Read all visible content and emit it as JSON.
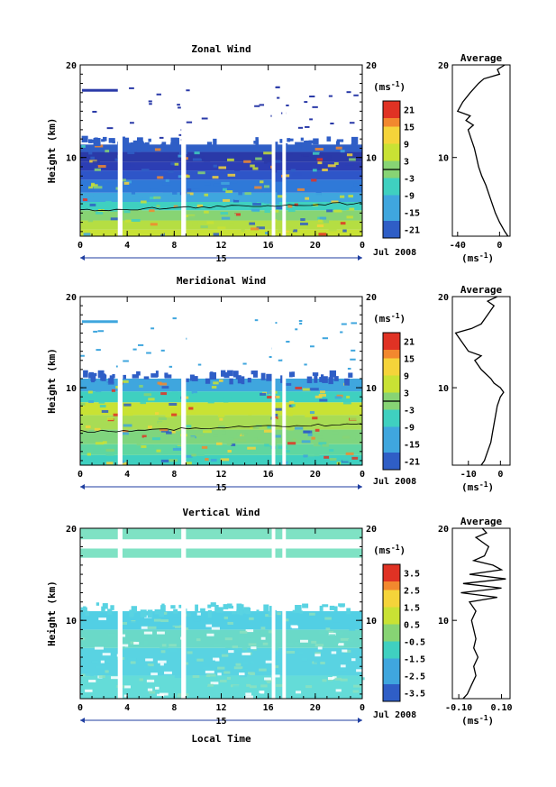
{
  "figure": {
    "xaxis_label": "Local Time",
    "date_label": "Jul 2008",
    "day_label": "15",
    "x_ticks": [
      "0",
      "4",
      "8",
      "12",
      "16",
      "20",
      "0"
    ]
  },
  "chart_data": [
    {
      "type": "heatmap",
      "title": "Zonal Wind",
      "ylabel": "Height (km)",
      "xlabel": "",
      "x_range_hours": [
        0,
        24
      ],
      "ylim": [
        1.5,
        20
      ],
      "y_ticks": [
        10,
        20
      ],
      "gaps_hours": [
        [
          3.2,
          3.6
        ],
        [
          8.6,
          9.0
        ],
        [
          16.3,
          16.6
        ],
        [
          17.2,
          17.5
        ]
      ],
      "data_top_km": 11.4,
      "sparse_upper": true,
      "contour_km": 4.3,
      "colorbar": {
        "unit_label": "(ms",
        "unit_exp": "-1",
        "unit_close": ")",
        "ticks": [
          "21",
          "15",
          "9",
          "3",
          "-3",
          "-9",
          "-15",
          "-21"
        ],
        "range": [
          -24,
          24
        ],
        "marker_value": 0
      },
      "profile": {
        "title": "Average",
        "unit_label": "(ms",
        "unit_exp": "-1",
        "unit_close": ")",
        "xlim": [
          -45,
          10
        ],
        "x_ticks": [
          "-40",
          "0"
        ],
        "x_tick_values": [
          -40,
          0
        ],
        "heights": [
          1.5,
          2,
          3,
          4,
          5,
          6,
          7,
          8,
          9,
          10,
          11,
          12,
          13,
          13.5,
          14,
          14.5,
          15,
          16,
          17,
          18,
          18.5,
          19,
          19.5,
          20
        ],
        "values": [
          8,
          5,
          0,
          -4,
          -7,
          -10,
          -13,
          -17,
          -20,
          -22,
          -24,
          -27,
          -30,
          -25,
          -32,
          -28,
          -40,
          -35,
          -28,
          -20,
          -15,
          0,
          -2,
          5
        ]
      },
      "base_band": [
        {
          "to_km": 2.2,
          "color": "#c9e234"
        },
        {
          "to_km": 3.2,
          "color": "#b5de43"
        },
        {
          "to_km": 4.3,
          "color": "#87d474"
        },
        {
          "to_km": 5.2,
          "color": "#3fd0c0"
        },
        {
          "to_km": 6.2,
          "color": "#3fa6de"
        },
        {
          "to_km": 7.6,
          "color": "#2f79d8"
        },
        {
          "to_km": 8.6,
          "color": "#2e55c8"
        },
        {
          "to_km": 9.5,
          "color": "#2c3eb4"
        },
        {
          "to_km": 10.6,
          "color": "#2a3aa8"
        },
        {
          "to_km": 11.4,
          "color": "#2f5ec6"
        }
      ]
    },
    {
      "type": "heatmap",
      "title": "Meridional Wind",
      "ylabel": "Height (km)",
      "xlabel": "",
      "x_range_hours": [
        0,
        24
      ],
      "ylim": [
        1.5,
        20
      ],
      "y_ticks": [
        10,
        20
      ],
      "gaps_hours": [
        [
          3.2,
          3.6
        ],
        [
          8.6,
          9.0
        ],
        [
          16.3,
          16.6
        ],
        [
          17.2,
          17.5
        ]
      ],
      "data_top_km": 11.0,
      "sparse_upper": true,
      "contour_km": 5.2,
      "colorbar": {
        "unit_label": "(ms",
        "unit_exp": "-1",
        "unit_close": ")",
        "ticks": [
          "21",
          "15",
          "9",
          "3",
          "-3",
          "-9",
          "-15",
          "-21"
        ],
        "range": [
          -24,
          24
        ],
        "marker_value": 0
      },
      "profile": {
        "title": "Average",
        "unit_label": "(ms",
        "unit_exp": "-1",
        "unit_close": ")",
        "xlim": [
          -15,
          3
        ],
        "x_ticks": [
          "-10",
          "0"
        ],
        "x_tick_values": [
          -10,
          0
        ],
        "heights": [
          1.5,
          2,
          3,
          4,
          5,
          6,
          7,
          8,
          9,
          9.5,
          10,
          10.5,
          11,
          12,
          13,
          13.5,
          14,
          15,
          16,
          16.5,
          17,
          18,
          19,
          19.5,
          20
        ],
        "values": [
          -6,
          -5,
          -4,
          -3,
          -2.5,
          -2,
          -1.5,
          -1,
          0,
          1,
          0,
          -2,
          -3,
          -6,
          -8,
          -6,
          -10,
          -12,
          -14,
          -9,
          -6,
          -4,
          -2,
          -4,
          -1
        ]
      },
      "base_band": [
        {
          "to_km": 2.6,
          "color": "#3fd0c0"
        },
        {
          "to_km": 3.8,
          "color": "#5fd6a0"
        },
        {
          "to_km": 5.4,
          "color": "#7fd57e"
        },
        {
          "to_km": 7.0,
          "color": "#a8dc55"
        },
        {
          "to_km": 8.4,
          "color": "#c9e234"
        },
        {
          "to_km": 9.6,
          "color": "#3fd0c0"
        },
        {
          "to_km": 11.0,
          "color": "#3fa6de"
        }
      ]
    },
    {
      "type": "heatmap",
      "title": "Vertical Wind",
      "ylabel": "Height (km)",
      "xlabel": "Local Time",
      "x_range_hours": [
        0,
        24
      ],
      "ylim": [
        1.5,
        20
      ],
      "y_ticks": [
        10,
        20
      ],
      "gaps_hours": [
        [
          3.2,
          3.6
        ],
        [
          8.6,
          9.0
        ],
        [
          16.3,
          16.6
        ],
        [
          17.2,
          17.5
        ]
      ],
      "data_top_km": 11.0,
      "sparse_upper": false,
      "upper_band_km": [
        16.8,
        20
      ],
      "contour_km": null,
      "colorbar": {
        "unit_label": "(ms",
        "unit_exp": "-1",
        "unit_close": ")",
        "ticks": [
          "3.5",
          "2.5",
          "1.5",
          "0.5",
          "-0.5",
          "-1.5",
          "-2.5",
          "-3.5"
        ],
        "range": [
          -4,
          4
        ],
        "marker_value": null
      },
      "profile": {
        "title": "Average",
        "unit_label": "(ms",
        "unit_exp": "-1",
        "unit_close": ")",
        "xlim": [
          -0.13,
          0.14
        ],
        "x_ticks": [
          "-0.10",
          "0.10"
        ],
        "x_tick_values": [
          -0.1,
          0.1
        ],
        "heights": [
          1.5,
          2,
          3,
          4,
          5,
          6,
          7,
          8,
          9,
          10,
          11,
          12,
          12.5,
          13,
          13.5,
          14,
          14.5,
          15,
          15.5,
          16,
          16.5,
          17,
          18,
          19,
          19.5,
          20
        ],
        "values": [
          -0.08,
          -0.06,
          -0.04,
          -0.02,
          -0.03,
          -0.01,
          -0.03,
          -0.02,
          -0.03,
          -0.04,
          -0.02,
          -0.05,
          0.08,
          -0.09,
          0.1,
          -0.08,
          0.12,
          -0.05,
          0.1,
          0.06,
          -0.03,
          0.02,
          0.04,
          -0.02,
          0.03,
          0.01
        ]
      },
      "base_band": [
        {
          "to_km": 4.0,
          "color": "#64dcd8"
        },
        {
          "to_km": 7.0,
          "color": "#59d3e2"
        },
        {
          "to_km": 9.0,
          "color": "#6ad9c8"
        },
        {
          "to_km": 11.0,
          "color": "#52cfe4"
        }
      ]
    }
  ]
}
